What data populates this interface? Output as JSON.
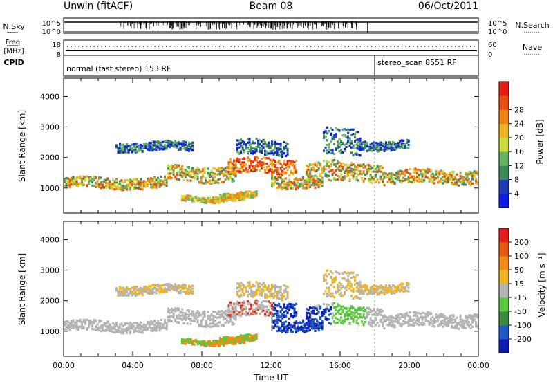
{
  "header": {
    "station": "Unwin (fitACF)",
    "beam": "Beam 08",
    "date": "06/Oct/2011"
  },
  "noise_panel": {
    "left_label": "N.Sky",
    "right_label": "N.Search",
    "yticks_left": [
      "10^5",
      "10^0"
    ],
    "yticks_right": [
      "10^5",
      "10^0"
    ]
  },
  "freq_panel": {
    "left_label": "Freq.",
    "left_unit": "[MHz]",
    "right_label": "Nave",
    "yticks_left": [
      "18",
      "8"
    ],
    "yticks_right": [
      "60",
      "0"
    ]
  },
  "cpid_panel": {
    "label": "CPID",
    "modes": [
      {
        "text": "normal (fast stereo) 153 RF",
        "start_h": 0,
        "end_h": 18
      },
      {
        "text": "stereo_scan 8551 RF",
        "start_h": 18,
        "end_h": 24
      }
    ]
  },
  "chart_data": [
    {
      "type": "heatmap",
      "name": "power-panel",
      "ylabel": "Slant Range [km]",
      "xlabel": "",
      "ylim": [
        180,
        4600
      ],
      "xlim": [
        0,
        24
      ],
      "yticks": [
        1000,
        2000,
        3000,
        4000
      ],
      "colorbar": {
        "label": "Power [dB]",
        "ticks": [
          "4",
          "8",
          "12",
          "16",
          "20",
          "24",
          "28"
        ],
        "colors": [
          "#0a1ee6",
          "#1e3cb4",
          "#3c8c5a",
          "#64b464",
          "#c8dc3c",
          "#f0b41e",
          "#f08214",
          "#e65014",
          "#e61e14"
        ]
      }
    },
    {
      "type": "heatmap",
      "name": "velocity-panel",
      "ylabel": "Slant Range [km]",
      "xlabel": "Time UT",
      "ylim": [
        180,
        4600
      ],
      "xlim": [
        0,
        24
      ],
      "yticks": [
        1000,
        2000,
        3000,
        4000
      ],
      "xticks": [
        "00:00",
        "04:00",
        "08:00",
        "12:00",
        "16:00",
        "20:00",
        "00:00"
      ],
      "colorbar": {
        "label": "Velocity [m s⁻¹]",
        "ticks": [
          "200",
          "100",
          "50",
          "15",
          "-15",
          "-50",
          "-100",
          "-200"
        ],
        "colors": [
          "#0a1eb4",
          "#1e5ac8",
          "#3c8c3c",
          "#5ac83c",
          "#b4b4b4",
          "#f0b41e",
          "#f08c14",
          "#e65a14",
          "#e61e1e"
        ]
      }
    }
  ]
}
